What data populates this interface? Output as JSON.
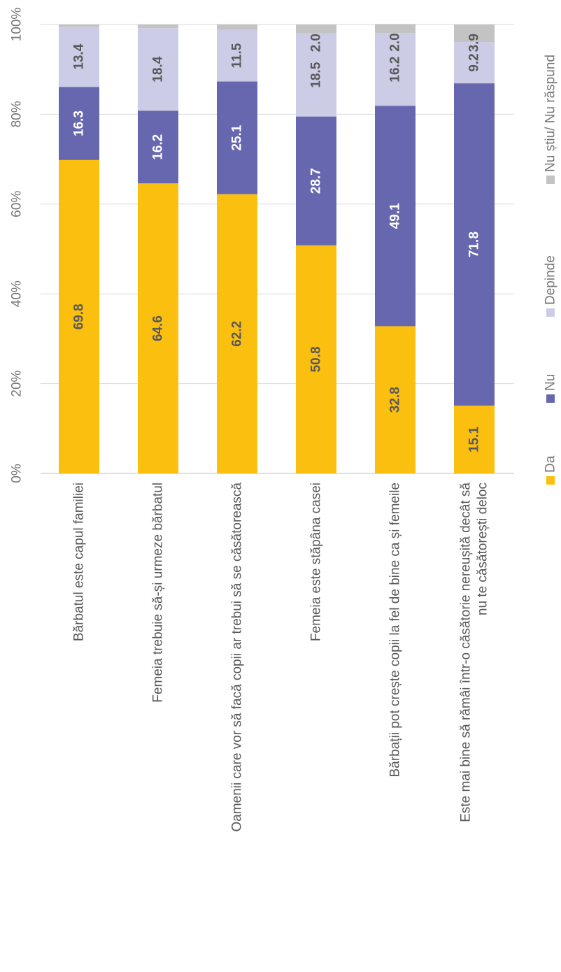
{
  "chart_data": {
    "type": "bar",
    "stacked": true,
    "orientation": "vertical",
    "categories": [
      [
        "Bărbatul este capul familiei"
      ],
      [
        "Femeia trebuie să-și urmeze bărbatul"
      ],
      [
        "Oamenii care vor să facă copii ar trebui să se căsătorească"
      ],
      [
        "Femeia este stăpâna casei"
      ],
      [
        "Bărbații pot crește copii la fel de bine ca și femeile"
      ],
      [
        "Este mai bine să rămâi într-o căsătorie nereușită decât să",
        "nu te căsătorești deloc"
      ]
    ],
    "series": [
      {
        "name": "Da",
        "color": "#FBBF10",
        "label_color": "#595959",
        "values": [
          69.8,
          64.6,
          62.2,
          50.8,
          32.8,
          15.1
        ]
      },
      {
        "name": "Nu",
        "color": "#6767B0",
        "label_color": "#ffffff",
        "values": [
          16.3,
          16.2,
          25.1,
          28.7,
          49.1,
          71.8
        ]
      },
      {
        "name": "Depinde",
        "color": "#CCCCE6",
        "label_color": "#595959",
        "values": [
          13.4,
          18.4,
          11.5,
          18.5,
          16.2,
          9.2
        ]
      },
      {
        "name": "Nu știu/ Nu răspund",
        "color": "#C3C3C3",
        "label_color": "#595959",
        "values": [
          0.5,
          0.8,
          1.2,
          2.0,
          2.0,
          3.9
        ]
      }
    ],
    "data_labels": [
      [
        "69.8",
        "64.6",
        "62.2",
        "50.8",
        "32.8",
        "15.1"
      ],
      [
        "16.3",
        "16.2",
        "25.1",
        "28.7",
        "49.1",
        "71.8"
      ],
      [
        "13.4",
        "18.4",
        "11.5",
        "18.5",
        "16.2",
        "9.2"
      ],
      [
        "",
        "",
        "",
        "2.0",
        "2.0",
        "3.9"
      ]
    ],
    "y_ticks": [
      "0%",
      "20%",
      "40%",
      "60%",
      "80%",
      "100%"
    ],
    "ylim": [
      0,
      100
    ],
    "grid": true,
    "legend_position": "bottom"
  }
}
